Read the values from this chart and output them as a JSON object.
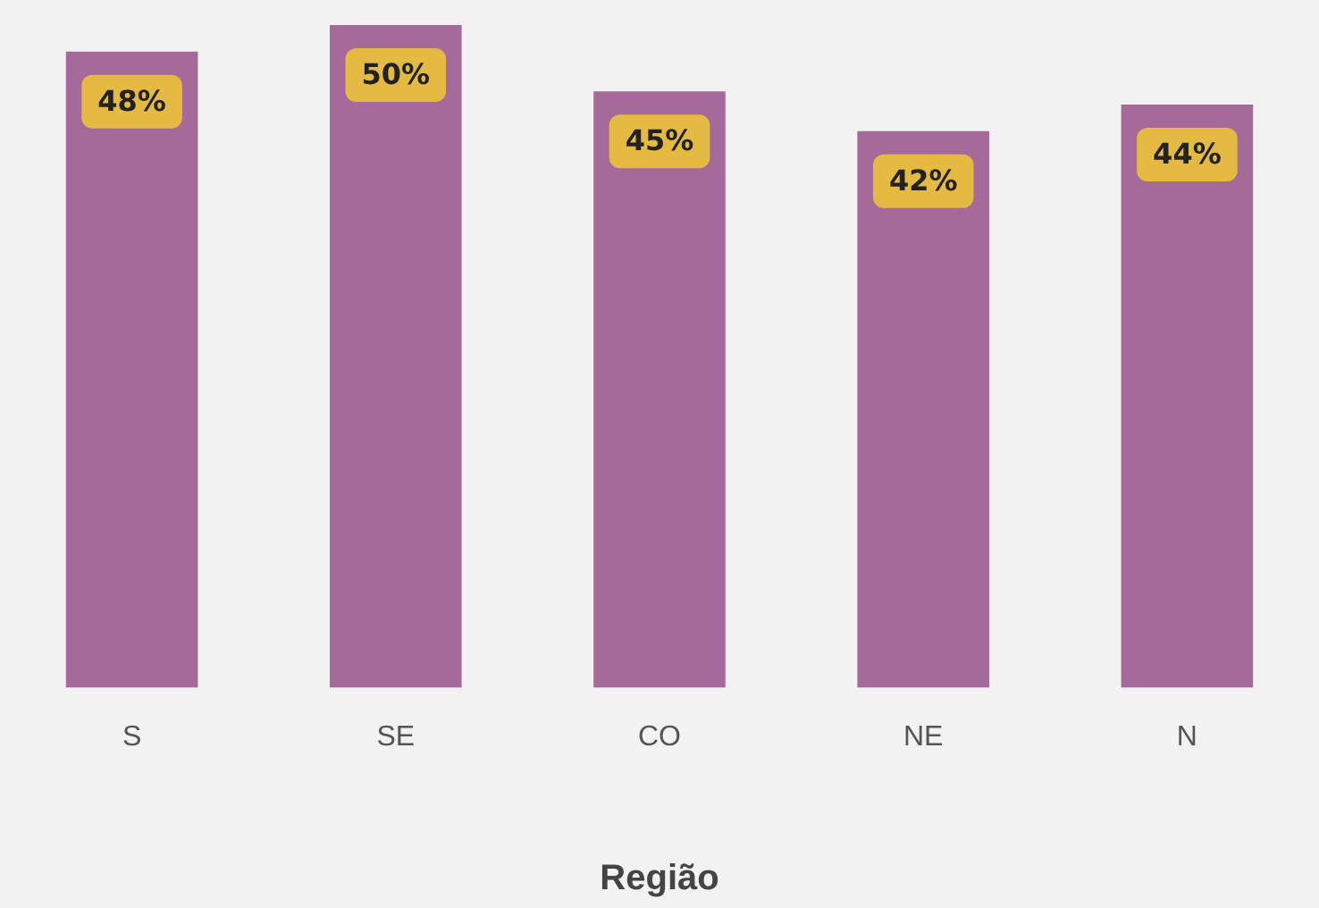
{
  "chart_data": {
    "type": "bar",
    "xlabel": "Região",
    "categories": [
      "S",
      "SE",
      "CO",
      "NE",
      "N"
    ],
    "values": [
      48,
      50,
      45,
      42,
      44
    ],
    "value_labels": [
      "48%",
      "50%",
      "45%",
      "42%",
      "44%"
    ],
    "color": "#a66a9a"
  }
}
